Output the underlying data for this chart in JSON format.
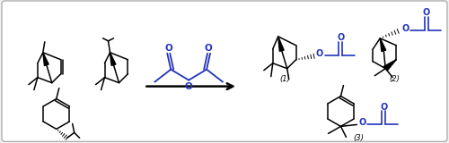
{
  "fig_width": 5.0,
  "fig_height": 1.6,
  "dpi": 100,
  "bg": "#f0f0f0",
  "border_color": "#b0b0b0",
  "black": "#000000",
  "blue": "#2233bb",
  "label1": "(1)",
  "label2": "(2)",
  "label3": "(3)"
}
